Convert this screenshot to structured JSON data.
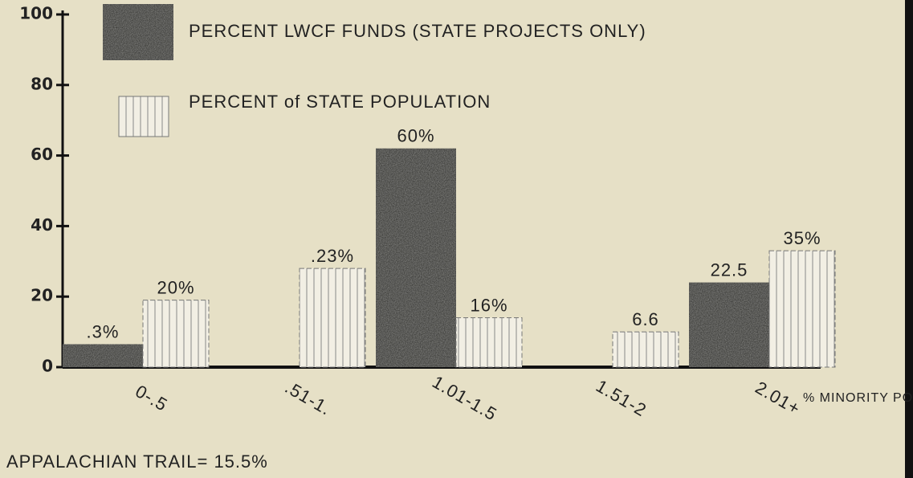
{
  "chart_data": {
    "type": "bar",
    "categories": [
      "0-.5",
      ".51-1.",
      "1.01-1.5",
      "1.51-2",
      "2.01+"
    ],
    "series": [
      {
        "name": "PERCENT LWCF FUNDS (STATE PROJECTS ONLY)",
        "color": "#3b3b38",
        "values": [
          6.5,
          null,
          62,
          null,
          24
        ]
      },
      {
        "name": "PERCENT of STATE POPULATION",
        "color": "#f2efe4",
        "values": [
          19,
          28,
          14,
          10,
          33
        ]
      }
    ],
    "annotations": [
      ".3%",
      "20%",
      ".23%",
      "60%",
      "16%",
      "6.6",
      "22.5",
      "35%"
    ],
    "xlabel": "% MINORITY POPULATION",
    "note": "APPALACHIAN TRAIL= 15.5%",
    "ylim": [
      0,
      100
    ],
    "yticks": [
      0,
      20,
      40,
      60,
      80,
      100
    ],
    "grid": false
  }
}
